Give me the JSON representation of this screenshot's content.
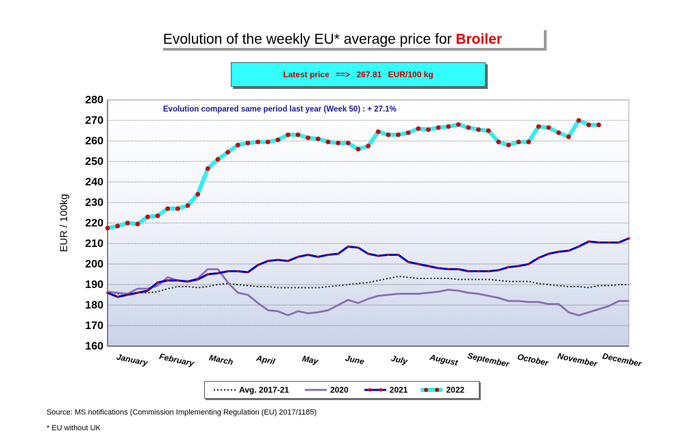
{
  "title": {
    "prefix": "Evolution of the weekly EU* average price for ",
    "product": "Broiler"
  },
  "latest_price": {
    "label": "Latest price",
    "arrow": "==>",
    "value": "267.81",
    "unit": "EUR/100 kg"
  },
  "footnotes": {
    "source": "Source: MS notifications (Commission Implementing Regulation (EU) 2017/1185)",
    "note": "* EU without UK"
  },
  "colors": {
    "avg": "#222222",
    "y2020": "#8a70b0",
    "y2021": "#0000c8",
    "y2022_line": "#33eeee",
    "y2022_dot": "#cc0000",
    "grid": "#333333"
  },
  "chart_data": {
    "type": "line",
    "annotation": "Evolution compared same period last year   (Week 50) : + 27.1%",
    "ylabel": "EUR / 100kg",
    "xlabel": "",
    "ylim": [
      160,
      280
    ],
    "yticks": [
      160,
      170,
      180,
      190,
      200,
      210,
      220,
      230,
      240,
      250,
      260,
      270,
      280
    ],
    "xlim": [
      1,
      53
    ],
    "categories": [
      "January",
      "February",
      "March",
      "April",
      "May",
      "June",
      "July",
      "August",
      "September",
      "October",
      "November",
      "December"
    ],
    "grid": true,
    "legend_position": "bottom",
    "series": [
      {
        "name": "Avg. 2017-21",
        "key": "avg",
        "x": [
          1,
          2,
          3,
          4,
          5,
          6,
          7,
          8,
          9,
          10,
          11,
          12,
          13,
          14,
          15,
          16,
          17,
          18,
          19,
          20,
          21,
          22,
          23,
          24,
          25,
          26,
          27,
          28,
          29,
          30,
          31,
          32,
          33,
          34,
          35,
          36,
          37,
          38,
          39,
          40,
          41,
          42,
          43,
          44,
          45,
          46,
          47,
          48,
          49,
          50,
          51,
          52,
          53
        ],
        "values": [
          186.5,
          185.5,
          185.5,
          186,
          186,
          186.5,
          188,
          189,
          189,
          188.5,
          189,
          190,
          190.5,
          190,
          189.5,
          189,
          189,
          188.5,
          188.5,
          188.5,
          188.5,
          188.5,
          189,
          189.5,
          190,
          190.5,
          191,
          192,
          193,
          194,
          193.5,
          193,
          193,
          193,
          193,
          192.5,
          192.5,
          192.5,
          192.5,
          192,
          191.5,
          191.5,
          191.5,
          190.5,
          190,
          189.5,
          189,
          189,
          188.5,
          189.5,
          189.5,
          190,
          190
        ]
      },
      {
        "name": "2020",
        "key": "y2020",
        "x": [
          1,
          2,
          3,
          4,
          5,
          6,
          7,
          8,
          9,
          10,
          11,
          12,
          13,
          14,
          15,
          16,
          17,
          18,
          19,
          20,
          21,
          22,
          23,
          24,
          25,
          26,
          27,
          28,
          29,
          30,
          31,
          32,
          33,
          34,
          35,
          36,
          37,
          38,
          39,
          40,
          41,
          42,
          43,
          44,
          45,
          46,
          47,
          48,
          49,
          50,
          51,
          52,
          53
        ],
        "values": [
          186.5,
          186,
          185.5,
          188,
          188,
          189.5,
          193.5,
          192,
          191.5,
          193,
          197.5,
          197.5,
          191,
          186,
          185,
          181,
          177.5,
          177,
          175,
          177,
          176,
          176.5,
          177.5,
          180,
          182.5,
          181,
          183,
          184.5,
          185,
          185.5,
          185.5,
          185.5,
          186,
          186.5,
          187.5,
          187,
          186,
          185.5,
          184.5,
          183.5,
          182,
          182,
          181.5,
          181.5,
          180.5,
          180.5,
          176.5,
          175,
          176.5,
          178,
          179.5,
          182,
          182
        ]
      },
      {
        "name": "2021",
        "key": "y2021",
        "x": [
          1,
          2,
          3,
          4,
          5,
          6,
          7,
          8,
          9,
          10,
          11,
          12,
          13,
          14,
          15,
          16,
          17,
          18,
          19,
          20,
          21,
          22,
          23,
          24,
          25,
          26,
          27,
          28,
          29,
          30,
          31,
          32,
          33,
          34,
          35,
          36,
          37,
          38,
          39,
          40,
          41,
          42,
          43,
          44,
          45,
          46,
          47,
          48,
          49,
          50,
          51,
          52,
          53
        ],
        "values": [
          186,
          184,
          185,
          186,
          187,
          191,
          192,
          192,
          191.5,
          192.5,
          195,
          195.5,
          196.5,
          196.5,
          196,
          199.5,
          201.5,
          202,
          201.5,
          203.5,
          204.5,
          203.5,
          204.5,
          205,
          208.5,
          208,
          205,
          204,
          204.5,
          204.5,
          201,
          200,
          199,
          198,
          197.5,
          197.5,
          196.5,
          196.5,
          196.5,
          197,
          198.5,
          199,
          200,
          203,
          205,
          206,
          206.5,
          208.5,
          211,
          210.5,
          210.5,
          210.5,
          212.5
        ]
      },
      {
        "name": "2022",
        "key": "y2022",
        "x": [
          1,
          2,
          3,
          4,
          5,
          6,
          7,
          8,
          9,
          10,
          11,
          12,
          13,
          14,
          15,
          16,
          17,
          18,
          19,
          20,
          21,
          22,
          23,
          24,
          25,
          26,
          27,
          28,
          29,
          30,
          31,
          32,
          33,
          34,
          35,
          36,
          37,
          38,
          39,
          40,
          41,
          42,
          43,
          44,
          45,
          46,
          47,
          48,
          49,
          50
        ],
        "values": [
          217.5,
          218.5,
          220,
          219.5,
          223,
          223.5,
          227,
          227,
          228.5,
          234,
          246.5,
          251,
          254.5,
          258,
          259,
          259.5,
          259.5,
          260.5,
          263,
          263,
          261.5,
          261,
          259.5,
          259,
          259,
          256,
          257.5,
          264.5,
          263,
          263,
          264,
          266,
          265.5,
          266.5,
          267,
          268,
          266.5,
          265.5,
          265,
          259.5,
          258,
          259.5,
          259.5,
          267,
          266.5,
          264,
          262,
          270,
          267.81,
          267.81
        ]
      }
    ]
  }
}
